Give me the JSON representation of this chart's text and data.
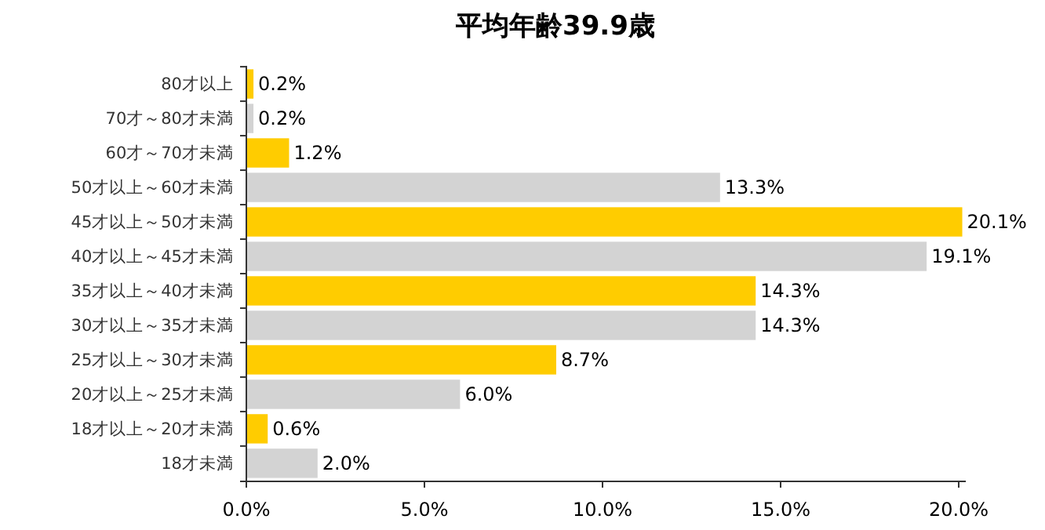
{
  "chart_data": {
    "type": "bar",
    "orientation": "horizontal",
    "title": "平均年齢39.9歳",
    "categories": [
      "80才以上",
      "70才～80才未満",
      "60才～70才未満",
      "50才以上～60才未満",
      "45才以上～50才未満",
      "40才以上～45才未満",
      "35才以上～40才未満",
      "30才以上～35才未満",
      "25才以上～30才未満",
      "20才以上～25才未満",
      "18才以上～20才未満",
      "18才未満"
    ],
    "values": [
      0.2,
      0.2,
      1.2,
      13.3,
      20.1,
      19.1,
      14.3,
      14.3,
      8.7,
      6.0,
      0.6,
      2.0
    ],
    "value_labels": [
      "0.2%",
      "0.2%",
      "1.2%",
      "13.3%",
      "20.1%",
      "19.1%",
      "14.3%",
      "14.3%",
      "8.7%",
      "6.0%",
      "0.6%",
      "2.0%"
    ],
    "colors": [
      "#ffcc00",
      "#d3d3d3",
      "#ffcc00",
      "#d3d3d3",
      "#ffcc00",
      "#d3d3d3",
      "#ffcc00",
      "#d3d3d3",
      "#ffcc00",
      "#d3d3d3",
      "#ffcc00",
      "#d3d3d3"
    ],
    "xlim": [
      0,
      20.2
    ],
    "xticks": [
      {
        "value": 0,
        "label": "0.0%"
      },
      {
        "value": 5,
        "label": "5.0%"
      },
      {
        "value": 10,
        "label": "10.0%"
      },
      {
        "value": 15,
        "label": "15.0%"
      },
      {
        "value": 20,
        "label": "20.0%"
      }
    ],
    "tick_labels": "x"
  }
}
